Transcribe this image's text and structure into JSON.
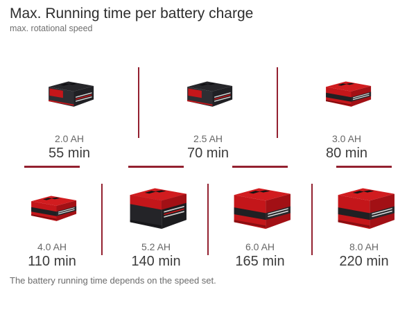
{
  "header": {
    "title": "Max. Running time per battery charge",
    "subtitle": "max. rotational speed"
  },
  "footer": {
    "note": "The battery running time depends on the speed set."
  },
  "colors": {
    "divider_red": "#93202f",
    "battery_red": "#c4161a",
    "battery_black": "#232326",
    "label_gray": "#666666",
    "value_dark": "#3b3b3b"
  },
  "batteries": [
    {
      "capacity": "2.0 AH",
      "time": "55 min",
      "variant": "compact-dark",
      "icon": "battery-image"
    },
    {
      "capacity": "2.5 AH",
      "time": "70 min",
      "variant": "compact-dark",
      "icon": "battery-image"
    },
    {
      "capacity": "3.0 AH",
      "time": "80 min",
      "variant": "compact-red",
      "icon": "battery-image"
    },
    {
      "capacity": "4.0 AH",
      "time": "110 min",
      "variant": "compact-red",
      "icon": "battery-image"
    },
    {
      "capacity": "5.2 AH",
      "time": "140 min",
      "variant": "tall-dark",
      "icon": "battery-image"
    },
    {
      "capacity": "6.0 AH",
      "time": "165 min",
      "variant": "tall-red",
      "icon": "battery-image"
    },
    {
      "capacity": "8.0 AH",
      "time": "220 min",
      "variant": "tall-red",
      "icon": "battery-image"
    }
  ],
  "chart_data": {
    "type": "table",
    "title": "Max. Running time per battery charge",
    "subtitle": "max. rotational speed",
    "categories": [
      "2.0 AH",
      "2.5 AH",
      "3.0 AH",
      "4.0 AH",
      "5.2 AH",
      "6.0 AH",
      "8.0 AH"
    ],
    "values": [
      55,
      70,
      80,
      110,
      140,
      165,
      220
    ],
    "unit": "min",
    "note": "The battery running time depends on the speed set.",
    "layout": "two rows: 3 items on top, 4 items below, separated by dark red divider lines"
  }
}
